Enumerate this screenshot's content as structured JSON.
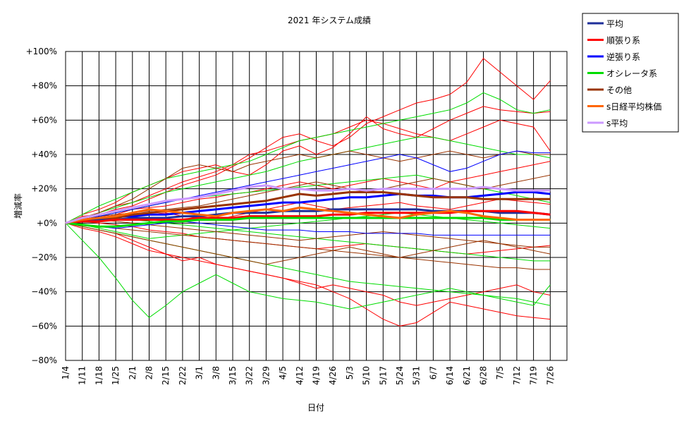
{
  "chart_data": {
    "type": "line",
    "title": "2021 年システム成績",
    "xlabel": "日付",
    "ylabel": "増減率",
    "ylim": [
      -80,
      100
    ],
    "y_ticks": [
      100,
      80,
      60,
      40,
      20,
      0,
      -20,
      -40,
      -60,
      -80
    ],
    "y_tick_labels": [
      "+100%",
      "+80%",
      "+60%",
      "+40%",
      "+20%",
      "+0%",
      "−20%",
      "−40%",
      "−60%",
      "−80%"
    ],
    "x_tick_labels": [
      "1/4",
      "1/11",
      "1/18",
      "1/25",
      "2/1",
      "2/8",
      "2/15",
      "2/22",
      "3/1",
      "3/8",
      "3/15",
      "3/22",
      "3/29",
      "4/5",
      "4/12",
      "4/19",
      "4/26",
      "5/3",
      "5/10",
      "5/17",
      "5/24",
      "5/31",
      "6/7",
      "6/14",
      "6/21",
      "6/28",
      "7/5",
      "7/12",
      "7/19",
      "7/26"
    ],
    "grid": true,
    "legend_position": "right",
    "series": [
      {
        "name": "平均",
        "color": "#1f2f9a",
        "width": 3,
        "values": [
          0,
          1,
          2,
          2,
          3,
          3,
          3,
          4,
          4,
          5,
          6,
          6,
          6,
          7,
          7,
          7,
          8,
          8,
          8,
          8,
          8,
          8,
          7,
          7,
          7,
          7,
          6,
          6,
          6,
          5
        ]
      },
      {
        "name": "順張り系",
        "color": "#ff0000",
        "width": 3,
        "values": [
          0,
          1,
          1,
          2,
          2,
          2,
          2,
          2,
          3,
          3,
          3,
          4,
          4,
          4,
          4,
          4,
          5,
          5,
          6,
          6,
          6,
          6,
          6,
          6,
          7,
          7,
          7,
          7,
          6,
          5
        ]
      },
      {
        "name": "逆張り系",
        "color": "#0000ff",
        "width": 3,
        "values": [
          0,
          2,
          3,
          4,
          4,
          5,
          5,
          6,
          7,
          8,
          9,
          10,
          11,
          12,
          12,
          13,
          14,
          15,
          15,
          16,
          17,
          16,
          16,
          15,
          15,
          16,
          17,
          18,
          18,
          17
        ]
      },
      {
        "name": "オシレータ系",
        "color": "#00dd00",
        "width": 3,
        "values": [
          0,
          -1,
          -2,
          -2,
          -1,
          0,
          1,
          1,
          2,
          2,
          2,
          3,
          3,
          3,
          3,
          3,
          3,
          3,
          3,
          3,
          3,
          3,
          3,
          3,
          3,
          3,
          2,
          2,
          2,
          2
        ]
      },
      {
        "name": "その他",
        "color": "#993300",
        "width": 3,
        "values": [
          0,
          2,
          3,
          3,
          5,
          6,
          7,
          8,
          9,
          10,
          11,
          12,
          13,
          15,
          17,
          16,
          17,
          18,
          18,
          18,
          17,
          16,
          15,
          15,
          15,
          14,
          14,
          14,
          14,
          14
        ]
      },
      {
        "name": "s日経平均株価",
        "color": "#ff6600",
        "width": 3,
        "values": [
          0,
          2,
          3,
          4,
          6,
          8,
          7,
          6,
          5,
          4,
          6,
          7,
          8,
          7,
          9,
          8,
          7,
          6,
          5,
          4,
          3,
          5,
          6,
          7,
          6,
          4,
          3,
          2,
          2,
          2
        ]
      },
      {
        "name": "s平均",
        "color": "#cc99ff",
        "width": 3,
        "values": [
          0,
          3,
          5,
          7,
          9,
          11,
          13,
          14,
          15,
          17,
          19,
          21,
          22,
          20,
          20,
          19,
          19,
          20,
          19,
          20,
          20,
          20,
          20,
          20,
          20,
          21,
          20,
          19,
          19,
          19
        ]
      }
    ],
    "individual_systems": [
      {
        "color": "#ff0000",
        "values": [
          0,
          4,
          5,
          8,
          10,
          14,
          18,
          22,
          25,
          28,
          33,
          38,
          44,
          50,
          52,
          48,
          45,
          50,
          58,
          62,
          66,
          70,
          72,
          75,
          82,
          96,
          88,
          80,
          72,
          83
        ]
      },
      {
        "color": "#ff0000",
        "values": [
          0,
          5,
          8,
          12,
          18,
          22,
          26,
          30,
          32,
          34,
          30,
          28,
          34,
          42,
          45,
          40,
          44,
          52,
          62,
          55,
          52,
          50,
          55,
          60,
          64,
          68,
          66,
          65,
          64,
          65
        ]
      },
      {
        "color": "#ff0000",
        "values": [
          0,
          3,
          6,
          10,
          12,
          16,
          20,
          24,
          27,
          30,
          34,
          40,
          42,
          45,
          48,
          50,
          52,
          56,
          60,
          58,
          55,
          52,
          50,
          48,
          52,
          56,
          60,
          58,
          56,
          42
        ]
      },
      {
        "color": "#ff0000",
        "values": [
          0,
          2,
          4,
          5,
          8,
          9,
          10,
          12,
          14,
          15,
          17,
          18,
          20,
          22,
          24,
          22,
          20,
          22,
          24,
          26,
          24,
          22,
          20,
          24,
          26,
          28,
          30,
          32,
          34,
          36
        ]
      },
      {
        "color": "#ff0000",
        "values": [
          0,
          -2,
          -4,
          -6,
          -10,
          -14,
          -18,
          -22,
          -20,
          -24,
          -26,
          -28,
          -30,
          -32,
          -35,
          -38,
          -36,
          -38,
          -40,
          -42,
          -46,
          -48,
          -46,
          -44,
          -42,
          -40,
          -38,
          -36,
          -40,
          -42
        ]
      },
      {
        "color": "#ff0000",
        "values": [
          0,
          -3,
          -5,
          -8,
          -12,
          -16,
          -18,
          -20,
          -22,
          -24,
          -26,
          -28,
          -30,
          -32,
          -34,
          -36,
          -40,
          -44,
          -50,
          -56,
          -60,
          -58,
          -52,
          -46,
          -48,
          -50,
          -52,
          -54,
          -55,
          -56
        ]
      },
      {
        "color": "#ff0000",
        "values": [
          0,
          1,
          0,
          -1,
          -2,
          -4,
          -5,
          -6,
          -8,
          -9,
          -10,
          -11,
          -12,
          -13,
          -14,
          -15,
          -14,
          -13,
          -12,
          -13,
          -14,
          -15,
          -16,
          -17,
          -18,
          -17,
          -16,
          -15,
          -14,
          -13
        ]
      },
      {
        "color": "#ff0000",
        "values": [
          0,
          2,
          1,
          3,
          4,
          5,
          6,
          4,
          3,
          2,
          4,
          6,
          8,
          10,
          12,
          10,
          8,
          9,
          10,
          11,
          12,
          10,
          9,
          8,
          10,
          12,
          14,
          13,
          12,
          11
        ]
      },
      {
        "color": "#00dd00",
        "values": [
          0,
          -10,
          -20,
          -32,
          -45,
          -55,
          -48,
          -40,
          -35,
          -30,
          -35,
          -40,
          -42,
          -44,
          -45,
          -46,
          -48,
          -50,
          -48,
          -46,
          -44,
          -42,
          -40,
          -38,
          -40,
          -42,
          -44,
          -46,
          -48,
          -36
        ]
      },
      {
        "color": "#00dd00",
        "values": [
          0,
          5,
          10,
          14,
          18,
          22,
          26,
          28,
          30,
          32,
          34,
          36,
          40,
          44,
          48,
          50,
          52,
          54,
          56,
          58,
          60,
          62,
          64,
          66,
          70,
          76,
          72,
          66,
          64,
          66
        ]
      },
      {
        "color": "#00dd00",
        "values": [
          0,
          3,
          6,
          9,
          12,
          15,
          18,
          20,
          22,
          24,
          26,
          28,
          30,
          33,
          36,
          38,
          40,
          42,
          44,
          46,
          48,
          50,
          50,
          48,
          46,
          44,
          42,
          40,
          40,
          38
        ]
      },
      {
        "color": "#00dd00",
        "values": [
          0,
          -2,
          -4,
          -6,
          -8,
          -10,
          -12,
          -14,
          -16,
          -18,
          -20,
          -22,
          -24,
          -26,
          -28,
          -30,
          -32,
          -34,
          -35,
          -36,
          -37,
          -38,
          -39,
          -40,
          -41,
          -42,
          -43,
          -44,
          -46,
          -48
        ]
      },
      {
        "color": "#00dd00",
        "values": [
          0,
          1,
          2,
          3,
          2,
          1,
          0,
          -1,
          -2,
          -3,
          -4,
          -5,
          -6,
          -7,
          -8,
          -9,
          -10,
          -11,
          -12,
          -13,
          -14,
          -15,
          -16,
          -17,
          -18,
          -19,
          -20,
          -21,
          -22,
          -22
        ]
      },
      {
        "color": "#00dd00",
        "values": [
          0,
          2,
          4,
          6,
          8,
          10,
          12,
          14,
          15,
          16,
          17,
          18,
          19,
          20,
          21,
          22,
          23,
          24,
          25,
          26,
          27,
          28,
          26,
          24,
          22,
          20,
          18,
          16,
          14,
          12
        ]
      },
      {
        "color": "#00dd00",
        "values": [
          0,
          -1,
          -3,
          -5,
          -7,
          -9,
          -8,
          -7,
          -6,
          -5,
          -4,
          -3,
          -2,
          -1,
          0,
          1,
          2,
          3,
          4,
          5,
          6,
          5,
          4,
          3,
          2,
          1,
          0,
          -1,
          -2,
          -3
        ]
      },
      {
        "color": "#993300",
        "values": [
          0,
          3,
          6,
          10,
          14,
          20,
          26,
          32,
          34,
          32,
          30,
          34,
          36,
          38,
          40,
          38,
          40,
          42,
          40,
          38,
          36,
          38,
          40,
          42,
          40,
          38,
          40,
          42,
          40,
          40
        ]
      },
      {
        "color": "#993300",
        "values": [
          0,
          -2,
          -4,
          -6,
          -8,
          -10,
          -12,
          -14,
          -16,
          -18,
          -20,
          -22,
          -24,
          -22,
          -20,
          -18,
          -16,
          -14,
          -16,
          -18,
          -20,
          -18,
          -16,
          -14,
          -12,
          -10,
          -12,
          -14,
          -16,
          -18
        ]
      },
      {
        "color": "#993300",
        "values": [
          0,
          2,
          4,
          5,
          6,
          7,
          8,
          9,
          10,
          12,
          14,
          16,
          18,
          20,
          22,
          24,
          22,
          20,
          18,
          20,
          22,
          24,
          26,
          24,
          22,
          20,
          22,
          24,
          26,
          28
        ]
      },
      {
        "color": "#993300",
        "values": [
          0,
          1,
          2,
          1,
          0,
          -1,
          -2,
          -3,
          -4,
          -5,
          -6,
          -7,
          -8,
          -9,
          -10,
          -9,
          -8,
          -7,
          -6,
          -5,
          -6,
          -7,
          -8,
          -9,
          -10,
          -11,
          -12,
          -13,
          -14,
          -14
        ]
      },
      {
        "color": "#993300",
        "values": [
          0,
          -1,
          -2,
          -3,
          -4,
          -5,
          -6,
          -7,
          -8,
          -9,
          -10,
          -11,
          -12,
          -13,
          -14,
          -15,
          -16,
          -17,
          -18,
          -19,
          -20,
          -21,
          -22,
          -23,
          -24,
          -25,
          -26,
          -26,
          -27,
          -27
        ]
      },
      {
        "color": "#0000ff",
        "values": [
          0,
          2,
          4,
          6,
          8,
          10,
          12,
          14,
          16,
          18,
          20,
          22,
          24,
          26,
          28,
          30,
          32,
          34,
          36,
          38,
          40,
          38,
          34,
          30,
          32,
          36,
          40,
          42,
          41,
          41
        ]
      },
      {
        "color": "#0000ff",
        "values": [
          0,
          -1,
          -2,
          -3,
          -2,
          -1,
          0,
          1,
          0,
          -1,
          -2,
          -3,
          -4,
          -4,
          -4,
          -5,
          -5,
          -5,
          -6,
          -6,
          -6,
          -6,
          -7,
          -7,
          -7,
          -7,
          -7,
          -7,
          -7,
          -7
        ]
      }
    ]
  }
}
